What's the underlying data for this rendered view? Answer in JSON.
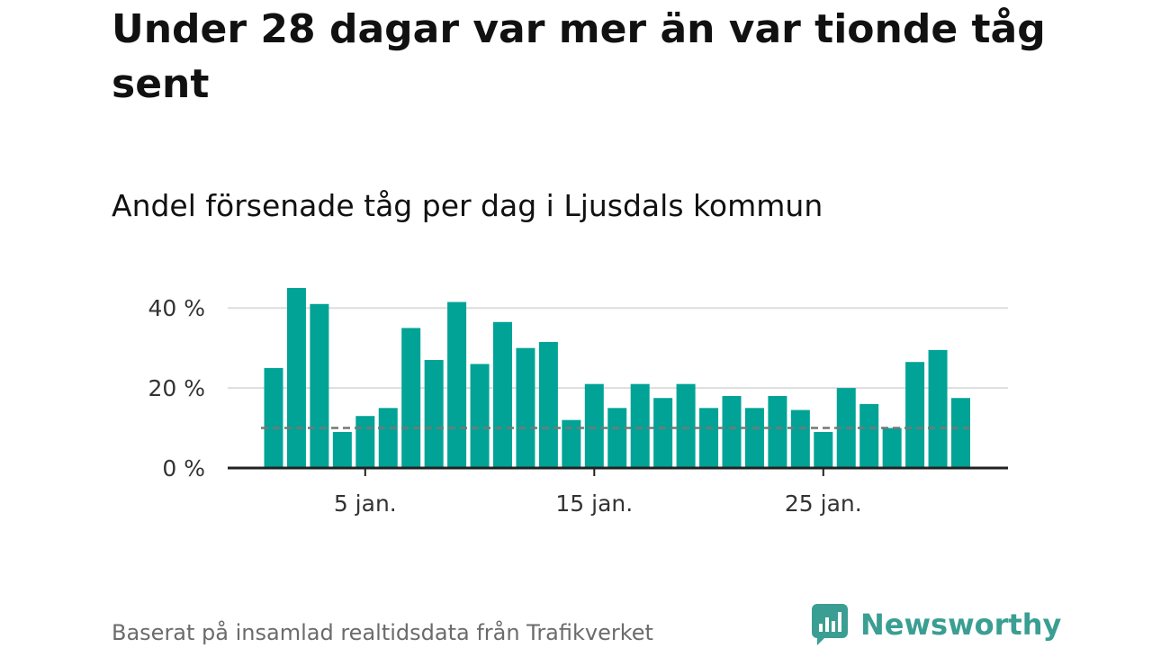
{
  "title": "Under 28 dagar var mer än var tionde tåg sent",
  "subtitle": "Andel försenade tåg per dag i Ljusdals kommun",
  "source": "Baserat på insamlad realtidsdata från Trafikverket",
  "logo": {
    "text": "Newsworthy",
    "icon": "newsworthy-logo-icon"
  },
  "colors": {
    "bar": "#00a396",
    "reference_line": "#777777",
    "grid": "#dddddd",
    "axis": "#222222",
    "logo": "#3a9e92"
  },
  "chart_data": {
    "type": "bar",
    "x": [
      1,
      2,
      3,
      4,
      5,
      6,
      7,
      8,
      9,
      10,
      11,
      12,
      13,
      14,
      15,
      16,
      17,
      18,
      19,
      20,
      21,
      22,
      23,
      24,
      25,
      26,
      27,
      28,
      29,
      30,
      31,
      32
    ],
    "values": [
      25,
      45,
      41,
      9,
      13,
      15,
      35,
      27,
      41.5,
      26,
      36.5,
      30,
      31.5,
      12,
      21,
      15,
      21,
      17.5,
      21,
      15,
      18,
      15,
      18,
      14.5,
      9,
      20,
      16,
      10,
      26.5,
      29.5,
      17.5,
      0
    ],
    "reference_line": 10,
    "ylim": [
      0,
      45
    ],
    "yticks": [
      0,
      20,
      40
    ],
    "ytick_labels": [
      "0 %",
      "20 %",
      "40 %"
    ],
    "xticks": [
      5,
      15,
      25
    ],
    "xtick_labels": [
      "5 jan.",
      "15 jan.",
      "25 jan."
    ],
    "grid": true
  }
}
